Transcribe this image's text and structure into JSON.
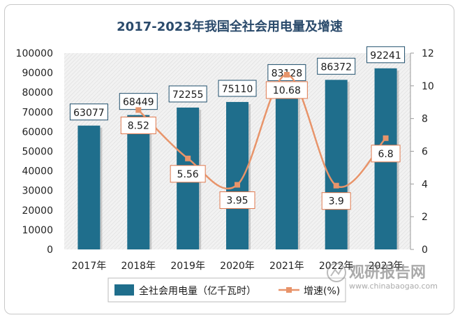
{
  "chart_data": {
    "type": "bar",
    "title": "2017-2023年我国全社会用电量及增速",
    "categories": [
      "2017年",
      "2018年",
      "2019年",
      "2020年",
      "2021年",
      "2022年",
      "2023年"
    ],
    "series": [
      {
        "name": "全社会用电量（亿千瓦时）",
        "type": "bar",
        "axis": "left",
        "values": [
          63077,
          68449,
          72255,
          75110,
          83128,
          86372,
          92241
        ],
        "color": "#1f6e8c"
      },
      {
        "name": "增速(%)",
        "type": "line",
        "axis": "right",
        "values": [
          null,
          8.52,
          5.56,
          3.95,
          10.68,
          3.9,
          6.8
        ],
        "color": "#e8946a"
      }
    ],
    "y_left": {
      "min": 0,
      "max": 100000,
      "step": 10000
    },
    "y_right": {
      "min": 0,
      "max": 12,
      "step": 2
    },
    "legend_position": "bottom"
  },
  "watermark": {
    "main": "观研报告网",
    "sub": "www.chinabaogao.com"
  }
}
